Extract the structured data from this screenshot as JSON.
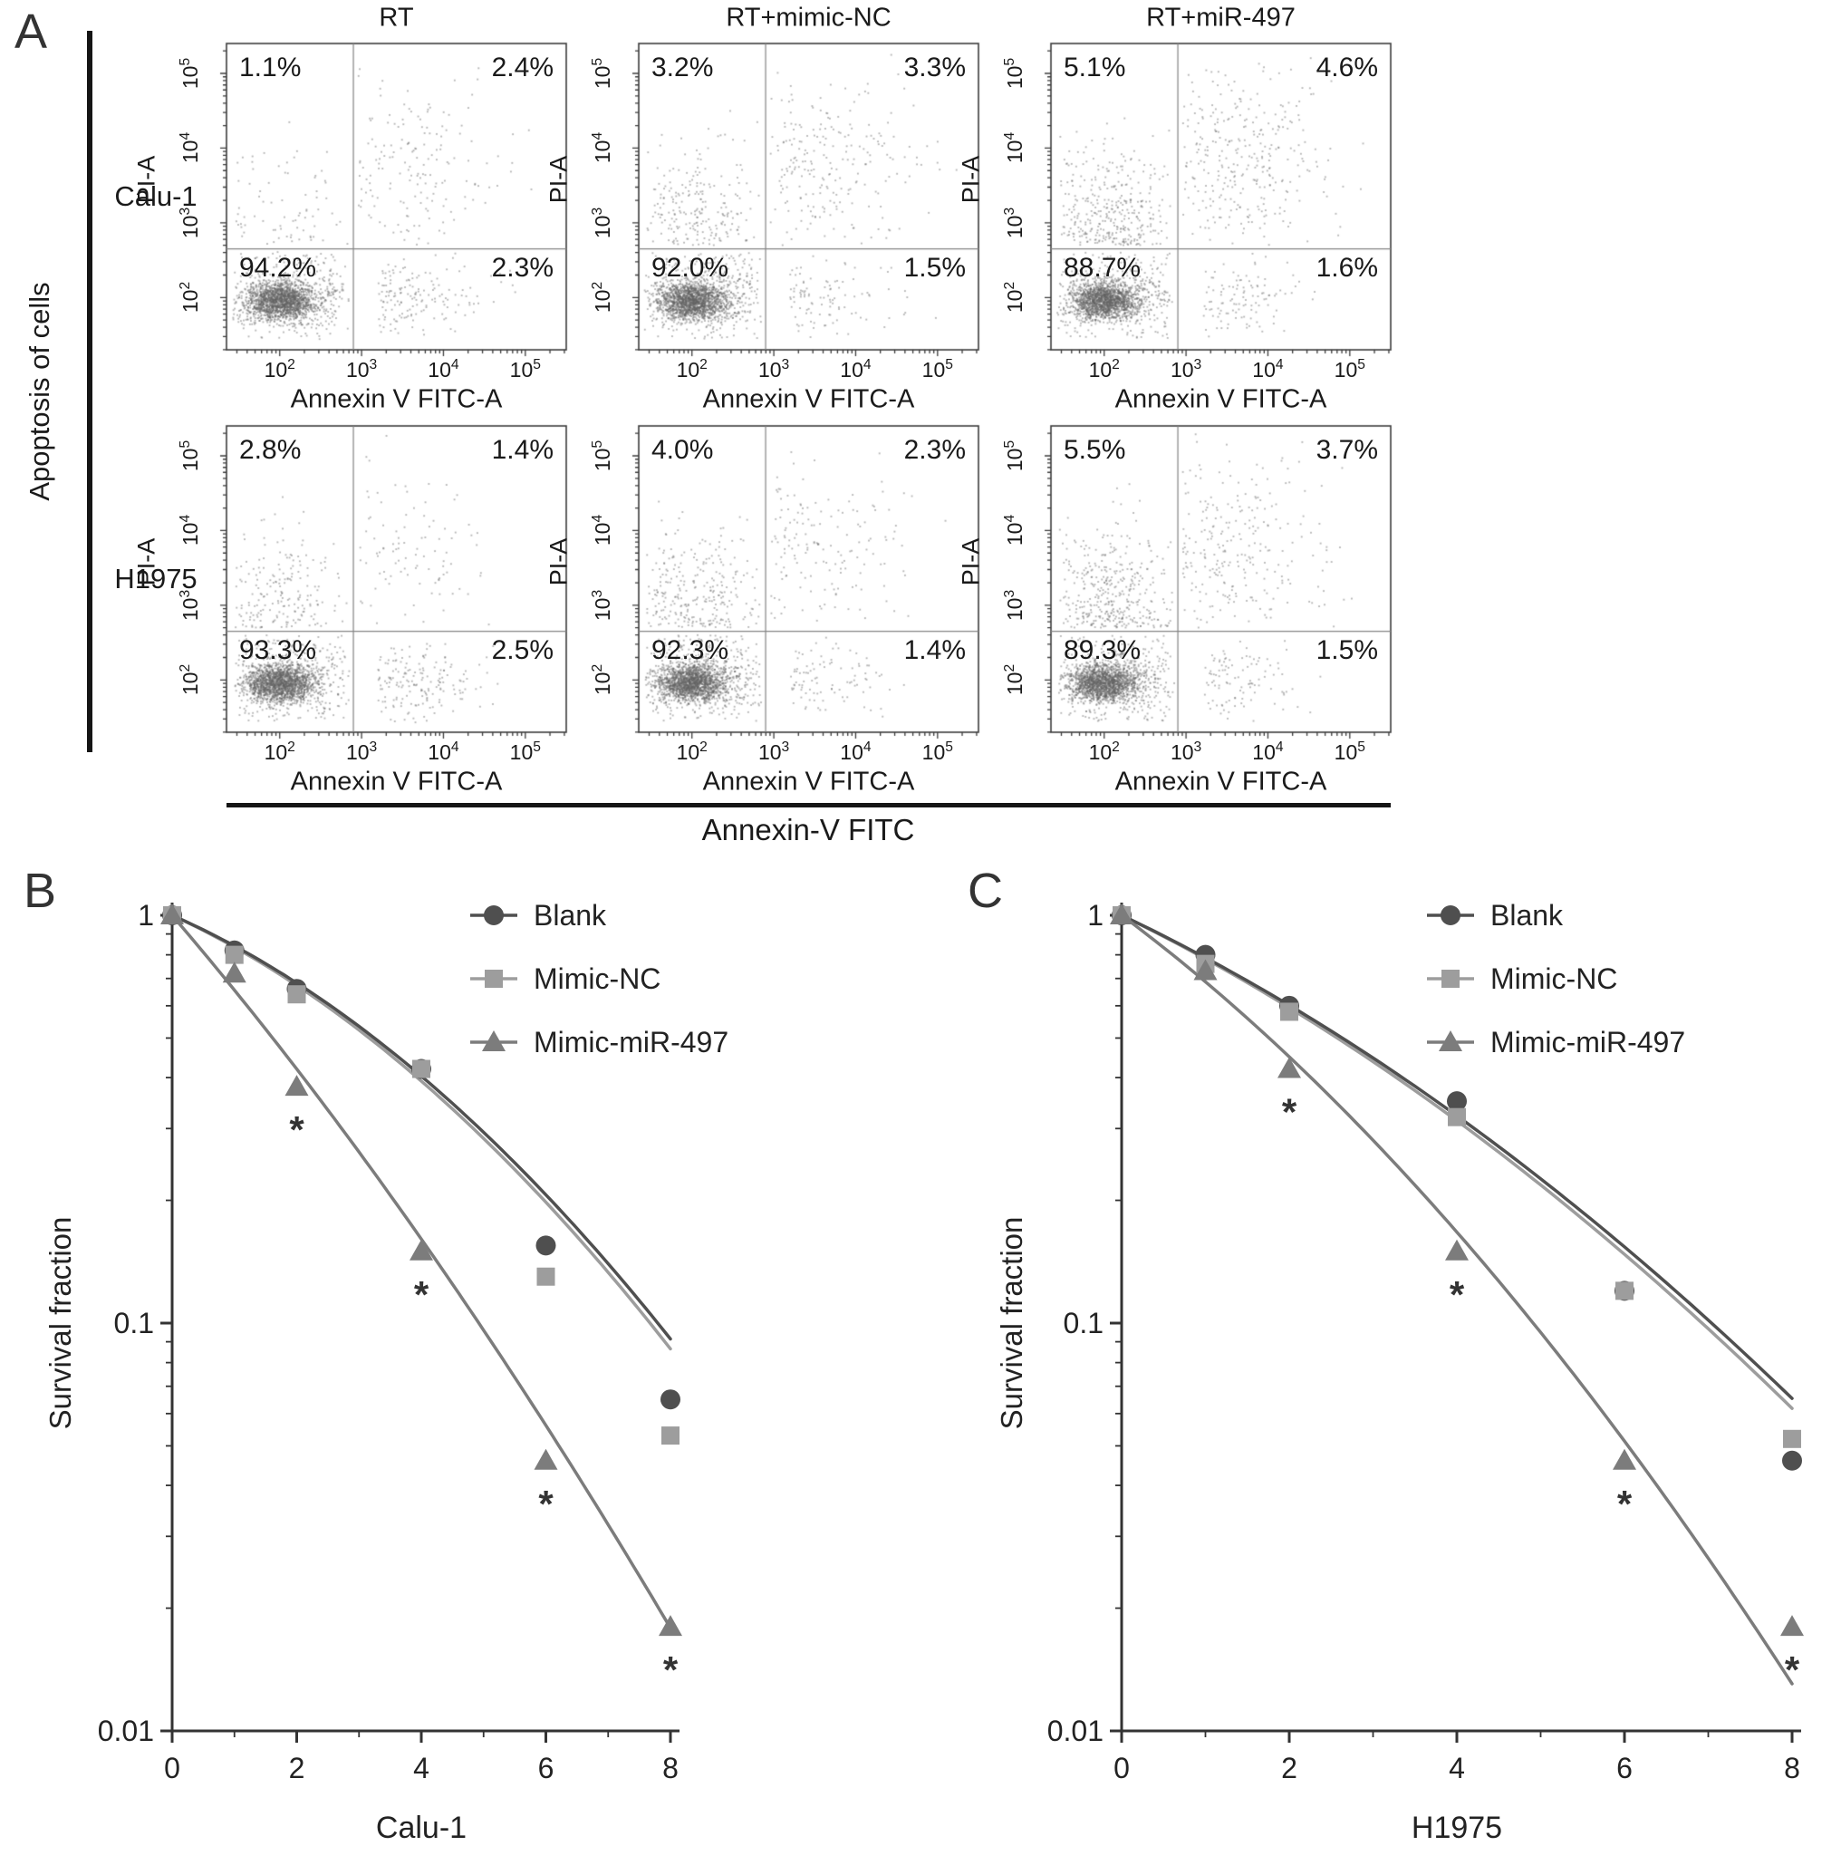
{
  "panels": {
    "a": {
      "label": "A",
      "side_label": "Apoptosis of cells",
      "bottom_label": "Annexin-V FITC"
    },
    "b": {
      "label": "B"
    },
    "c": {
      "label": "C"
    }
  },
  "flow": {
    "col_titles": [
      "RT",
      "RT+mimic-NC",
      "RT+miR-497"
    ],
    "row_titles": [
      "Calu-1",
      "H1975"
    ],
    "x_axis_label": "Annexin V FITC-A",
    "y_axis_label": "PI-A",
    "tick_exponents": [
      2,
      3,
      4,
      5
    ],
    "plots": [
      {
        "row": 0,
        "col": 0,
        "quadrants": {
          "ul": "1.1%",
          "ur": "2.4%",
          "ll": "94.2%",
          "lr": "2.3%"
        }
      },
      {
        "row": 0,
        "col": 1,
        "quadrants": {
          "ul": "3.2%",
          "ur": "3.3%",
          "ll": "92.0%",
          "lr": "1.5%"
        }
      },
      {
        "row": 0,
        "col": 2,
        "quadrants": {
          "ul": "5.1%",
          "ur": "4.6%",
          "ll": "88.7%",
          "lr": "1.6%"
        }
      },
      {
        "row": 1,
        "col": 0,
        "quadrants": {
          "ul": "2.8%",
          "ur": "1.4%",
          "ll": "93.3%",
          "lr": "2.5%"
        }
      },
      {
        "row": 1,
        "col": 1,
        "quadrants": {
          "ul": "4.0%",
          "ur": "2.3%",
          "ll": "92.3%",
          "lr": "1.4%"
        }
      },
      {
        "row": 1,
        "col": 2,
        "quadrants": {
          "ul": "5.5%",
          "ur": "3.7%",
          "ll": "89.3%",
          "lr": "1.5%"
        }
      }
    ]
  },
  "chart_data": [
    {
      "type": "scatter",
      "panel": "A",
      "name": "Flow cytometry apoptosis (Annexin V FITC vs PI)",
      "xlabel": "Annexin V FITC-A",
      "ylabel": "PI-A",
      "x_log_ticks": [
        2,
        3,
        4,
        5
      ],
      "y_log_ticks": [
        2,
        3,
        4,
        5
      ],
      "quadrant_percentages": [
        {
          "cell_line": "Calu-1",
          "condition": "RT",
          "upper_left": 1.1,
          "upper_right": 2.4,
          "lower_left": 94.2,
          "lower_right": 2.3
        },
        {
          "cell_line": "Calu-1",
          "condition": "RT+mimic-NC",
          "upper_left": 3.2,
          "upper_right": 3.3,
          "lower_left": 92.0,
          "lower_right": 1.5
        },
        {
          "cell_line": "Calu-1",
          "condition": "RT+miR-497",
          "upper_left": 5.1,
          "upper_right": 4.6,
          "lower_left": 88.7,
          "lower_right": 1.6
        },
        {
          "cell_line": "H1975",
          "condition": "RT",
          "upper_left": 2.8,
          "upper_right": 1.4,
          "lower_left": 93.3,
          "lower_right": 2.5
        },
        {
          "cell_line": "H1975",
          "condition": "RT+mimic-NC",
          "upper_left": 4.0,
          "upper_right": 2.3,
          "lower_left": 92.3,
          "lower_right": 1.4
        },
        {
          "cell_line": "H1975",
          "condition": "RT+miR-497",
          "upper_left": 5.5,
          "upper_right": 3.7,
          "lower_left": 89.3,
          "lower_right": 1.5
        }
      ]
    },
    {
      "type": "line",
      "panel": "B",
      "xlabel": "Calu-1",
      "ylabel": "Survival fraction",
      "x": [
        0,
        1,
        2,
        4,
        6,
        8
      ],
      "xlim": [
        0,
        8
      ],
      "ylim": [
        0.01,
        1
      ],
      "xticks": [
        0,
        2,
        4,
        6,
        8
      ],
      "xtick_labels": [
        "0",
        "2",
        "4",
        "6",
        "8"
      ],
      "yticks": [
        1,
        0.1,
        0.01
      ],
      "ytick_labels": [
        "1",
        "0.1",
        "0.01"
      ],
      "y_scale": "log",
      "legend_position": "top-right",
      "series": [
        {
          "name": "Blank",
          "marker": "circle",
          "color": "#4f4f4f",
          "values": [
            1,
            0.82,
            0.66,
            0.42,
            0.155,
            0.065
          ],
          "fit": {
            "alpha": 0.155,
            "beta": 0.018
          }
        },
        {
          "name": "Mimic-NC",
          "marker": "square",
          "color": "#9d9d9d",
          "values": [
            1,
            0.8,
            0.64,
            0.42,
            0.13,
            0.053
          ],
          "fit": {
            "alpha": 0.162,
            "beta": 0.018
          }
        },
        {
          "name": "Mimic-miR-497",
          "marker": "triangle",
          "color": "#7c7c7c",
          "values": [
            1,
            0.72,
            0.38,
            0.15,
            0.046,
            0.018
          ],
          "fit": {
            "alpha": 0.411,
            "beta": 0.0115
          }
        }
      ],
      "significance_x": [
        2,
        4,
        6,
        8
      ],
      "significance_symbol": "*"
    },
    {
      "type": "line",
      "panel": "C",
      "xlabel": "H1975",
      "ylabel": "Survival fraction",
      "x": [
        0,
        1,
        2,
        4,
        6,
        8
      ],
      "xlim": [
        0,
        8
      ],
      "ylim": [
        0.01,
        1
      ],
      "xticks": [
        0,
        2,
        4,
        6,
        8
      ],
      "xtick_labels": [
        "0",
        "2",
        "4",
        "6",
        "8"
      ],
      "yticks": [
        1,
        0.1,
        0.01
      ],
      "ytick_labels": [
        "1",
        "0.1",
        "0.01"
      ],
      "y_scale": "log",
      "legend_position": "top-right",
      "series": [
        {
          "name": "Blank",
          "marker": "circle",
          "color": "#4f4f4f",
          "values": [
            1,
            0.8,
            0.6,
            0.35,
            0.12,
            0.046
          ],
          "fit": {
            "alpha": 0.225,
            "beta": 0.0145
          }
        },
        {
          "name": "Mimic-NC",
          "marker": "square",
          "color": "#9d9d9d",
          "values": [
            1,
            0.76,
            0.58,
            0.32,
            0.12,
            0.052
          ],
          "fit": {
            "alpha": 0.232,
            "beta": 0.0145
          }
        },
        {
          "name": "Mimic-miR-497",
          "marker": "triangle",
          "color": "#7c7c7c",
          "values": [
            1,
            0.73,
            0.42,
            0.15,
            0.046,
            0.018
          ],
          "fit": {
            "alpha": 0.352,
            "beta": 0.0238
          }
        }
      ],
      "significance_x": [
        2,
        4,
        6,
        8
      ],
      "significance_symbol": "*"
    }
  ]
}
